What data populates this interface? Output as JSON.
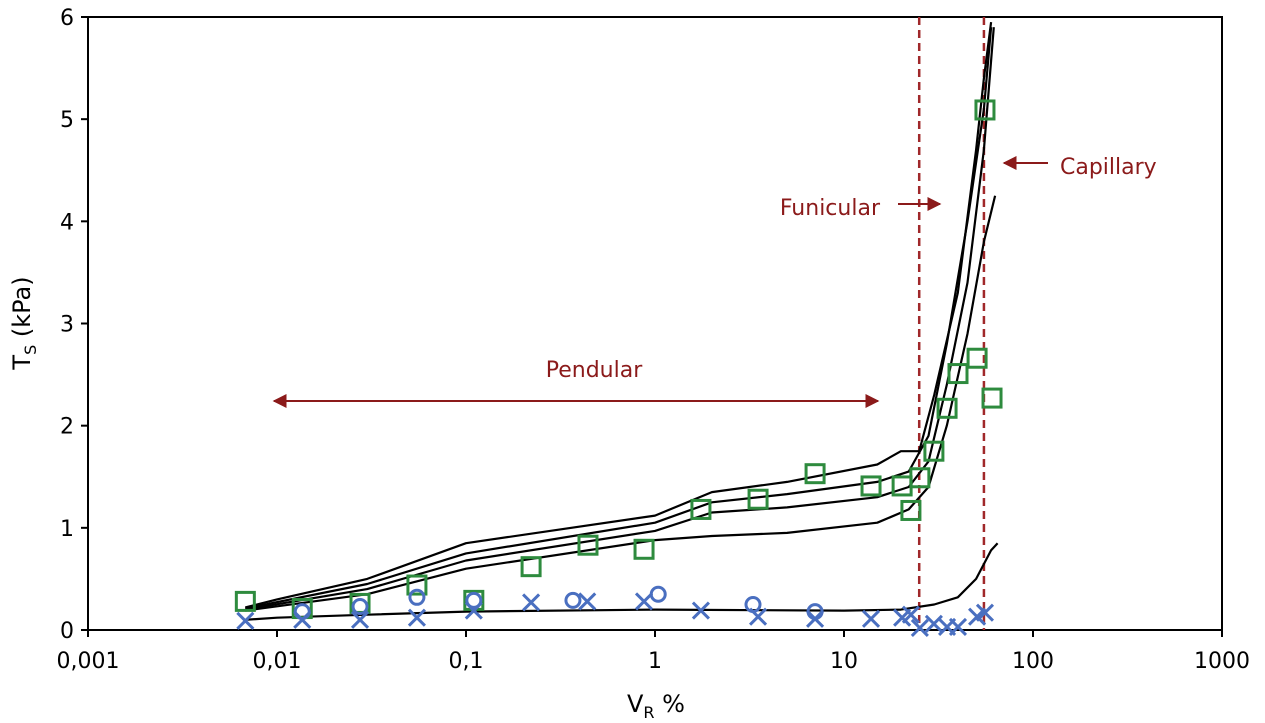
{
  "chart_data": {
    "type": "scatter",
    "xlog": true,
    "xlim": [
      0.001,
      1000
    ],
    "ylim": [
      0,
      6
    ],
    "xticks": [
      {
        "value": 0.001,
        "label": "0,001"
      },
      {
        "value": 0.01,
        "label": "0,01"
      },
      {
        "value": 0.1,
        "label": "0,1"
      },
      1,
      10,
      100,
      1000
    ],
    "yticks": [
      0,
      1,
      2,
      3,
      4,
      5,
      6
    ],
    "xlabel": {
      "main": "V",
      "sub": "R",
      "rest": " %"
    },
    "ylabel": {
      "main": "T",
      "sub": "S",
      "rest": " (kPa)"
    },
    "annotations": [
      "Pendular",
      "Funicular",
      "Capillary"
    ],
    "vlines": [
      {
        "x": 25,
        "color": "#a0282a"
      },
      {
        "x": 55,
        "color": "#a0282a"
      }
    ],
    "curves": [
      {
        "color": "#000000",
        "x": [
          0.0068,
          0.01,
          0.03,
          0.1,
          1,
          2,
          5,
          15,
          20,
          25,
          30,
          40,
          50,
          55,
          60
        ],
        "values": [
          0.22,
          0.3,
          0.5,
          0.85,
          1.12,
          1.35,
          1.45,
          1.62,
          1.75,
          1.75,
          2.3,
          3.3,
          4.7,
          5.4,
          5.95
        ]
      },
      {
        "color": "#000000",
        "x": [
          0.0068,
          0.03,
          0.1,
          1,
          2,
          5,
          15,
          22,
          28,
          35,
          45,
          55,
          60
        ],
        "values": [
          0.21,
          0.45,
          0.75,
          1.05,
          1.25,
          1.33,
          1.45,
          1.55,
          1.9,
          2.8,
          4.0,
          5.1,
          5.9
        ]
      },
      {
        "color": "#000000",
        "x": [
          0.0068,
          0.03,
          0.1,
          1,
          2,
          5,
          15,
          22,
          28,
          35,
          45,
          55,
          62
        ],
        "values": [
          0.2,
          0.4,
          0.68,
          0.97,
          1.15,
          1.2,
          1.3,
          1.4,
          1.65,
          2.4,
          3.4,
          4.7,
          5.9
        ]
      },
      {
        "color": "#000000",
        "x": [
          0.0068,
          0.03,
          0.1,
          1,
          2,
          5,
          15,
          22,
          28,
          35,
          45,
          55,
          63
        ],
        "values": [
          0.19,
          0.35,
          0.6,
          0.88,
          0.92,
          0.95,
          1.05,
          1.18,
          1.4,
          2.0,
          2.9,
          3.8,
          4.25
        ]
      },
      {
        "color": "#000000",
        "x": [
          0.0068,
          0.01,
          0.03,
          0.1,
          1,
          10,
          20,
          30,
          40,
          50,
          60,
          65
        ],
        "values": [
          0.1,
          0.12,
          0.15,
          0.18,
          0.2,
          0.19,
          0.2,
          0.25,
          0.32,
          0.5,
          0.78,
          0.85
        ]
      }
    ],
    "series": [
      {
        "marker": "square",
        "color": "#2e8b3e",
        "x": [
          0.0068,
          0.0136,
          0.0275,
          0.055,
          0.11,
          0.221,
          0.442,
          0.875,
          1.75,
          3.51,
          7.03,
          13.9,
          20.3,
          22.6,
          25.2,
          29.9,
          35.1,
          40.1,
          50.6,
          55.7,
          60.7
        ],
        "values": [
          0.28,
          0.21,
          0.26,
          0.44,
          0.29,
          0.62,
          0.83,
          0.79,
          1.18,
          1.28,
          1.53,
          1.41,
          1.41,
          1.17,
          1.49,
          1.75,
          2.17,
          2.51,
          2.66,
          5.09,
          2.27
        ]
      },
      {
        "marker": "circle",
        "color": "#4a6fc0",
        "x": [
          0.0136,
          0.0275,
          0.055,
          0.11,
          0.368,
          1.04,
          3.3,
          7.03
        ],
        "values": [
          0.18,
          0.23,
          0.32,
          0.29,
          0.29,
          0.35,
          0.25,
          0.18
        ]
      },
      {
        "marker": "cross",
        "color": "#4a6fc0",
        "x": [
          0.0068,
          0.0136,
          0.0275,
          0.055,
          0.11,
          0.221,
          0.438,
          0.875,
          1.75,
          3.51,
          7.03,
          13.9,
          20.3,
          22.6,
          25.2,
          29.9,
          35.1,
          40.1,
          50.6,
          55.7
        ],
        "values": [
          0.09,
          0.1,
          0.1,
          0.12,
          0.19,
          0.27,
          0.28,
          0.28,
          0.19,
          0.13,
          0.11,
          0.11,
          0.12,
          0.15,
          0.02,
          0.06,
          0.03,
          0.03,
          0.13,
          0.17
        ]
      }
    ]
  }
}
